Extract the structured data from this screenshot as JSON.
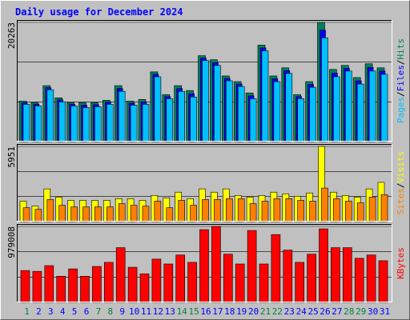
{
  "chart_data": {
    "type": "bar",
    "title": "Daily usage for December 2024",
    "legend_separator": "/",
    "categories": [
      "1",
      "2",
      "3",
      "4",
      "5",
      "6",
      "7",
      "8",
      "9",
      "10",
      "11",
      "12",
      "13",
      "14",
      "15",
      "16",
      "17",
      "18",
      "19",
      "20",
      "21",
      "22",
      "23",
      "24",
      "25",
      "26",
      "27",
      "28",
      "29",
      "30",
      "31"
    ],
    "category_colors": [
      "#008040",
      "#0000ff",
      "#0000ff",
      "#0000ff",
      "#0000ff",
      "#0000ff",
      "#008040",
      "#008040",
      "#0000ff",
      "#0000ff",
      "#0000ff",
      "#0000ff",
      "#0000ff",
      "#008040",
      "#008040",
      "#0000ff",
      "#0000ff",
      "#0000ff",
      "#0000ff",
      "#0000ff",
      "#008040",
      "#008040",
      "#0000ff",
      "#0000ff",
      "#0000ff",
      "#0000ff",
      "#0000ff",
      "#008040",
      "#008040",
      "#0000ff",
      "#0000ff"
    ],
    "panels": [
      {
        "ylim": [
          0,
          20263
        ],
        "yticks": [
          20263
        ],
        "series": [
          {
            "name": "Hits",
            "color": "#00805c",
            "values": [
              6890,
              6614,
              9510,
              7440,
              6614,
              6614,
              6614,
              7030,
              9510,
              6890,
              7165,
              11850,
              7990,
              9510,
              8680,
              14605,
              13915,
              11160,
              10195,
              8270,
              16400,
              11160,
              12540,
              7990,
              10195,
              20263,
              12265,
              12950,
              10885,
              13230,
              12540
            ]
          },
          {
            "name": "Files",
            "color": "#0000ff",
            "values": [
              6615,
              6340,
              9165,
              7095,
              6340,
              6200,
              6270,
              6685,
              9025,
              6545,
              6750,
              11440,
              7645,
              9025,
              8130,
              14190,
              13430,
              10750,
              9780,
              7785,
              15920,
              10680,
              12060,
              7645,
              9710,
              18950,
              11645,
              12470,
              10335,
              12610,
              11990
            ]
          },
          {
            "name": "Pages",
            "color": "#00c0ff",
            "values": [
              6340,
              6060,
              8820,
              6750,
              6060,
              5790,
              5925,
              6340,
              8540,
              6200,
              6340,
              11025,
              7300,
              8540,
              7580,
              13780,
              12950,
              10335,
              9370,
              7300,
              15435,
              10195,
              11575,
              7300,
              9230,
              17640,
              11025,
              11990,
              9785,
              11990,
              11440
            ]
          }
        ]
      },
      {
        "ylim": [
          0,
          5951
        ],
        "yticks": [
          5951
        ],
        "series": [
          {
            "name": "Visits",
            "color": "#ffff00",
            "values": [
              1618,
              1230,
              2588,
              1941,
              1682,
              1682,
              1682,
              1682,
              1812,
              1812,
              1682,
              2070,
              1876,
              2329,
              1812,
              2588,
              2329,
              2588,
              2070,
              1941,
              2070,
              2329,
              2200,
              2006,
              2265,
              5951,
              2329,
              2070,
              1941,
              2588,
              3106
            ]
          },
          {
            "name": "Sites",
            "color": "#ff8000",
            "values": [
              1100,
              970,
              1747,
              1294,
              1165,
              1165,
              1165,
              1165,
              1423,
              1294,
              1230,
              1618,
              1100,
              1682,
              1294,
              1747,
              1747,
              1812,
              1812,
              1423,
              1618,
              1812,
              1812,
              1682,
              1618,
              2653,
              1812,
              1618,
              1488,
              1941,
              2135
            ]
          }
        ]
      },
      {
        "ylim": [
          0,
          979008
        ],
        "yticks": [
          979008
        ],
        "series": [
          {
            "name": "KBytes",
            "color": "#ff0000",
            "values": [
              410550,
              400000,
              473700,
              336900,
              431600,
              336900,
              463200,
              515800,
              705300,
              452700,
              368400,
              557900,
              494800,
              610600,
              515800,
              936900,
              979008,
              621100,
              494800,
              926400,
              494800,
              873700,
              673700,
              515800,
              621100,
              947400,
              705300,
              705300,
              568400,
              610600,
              536900
            ]
          }
        ]
      }
    ]
  }
}
